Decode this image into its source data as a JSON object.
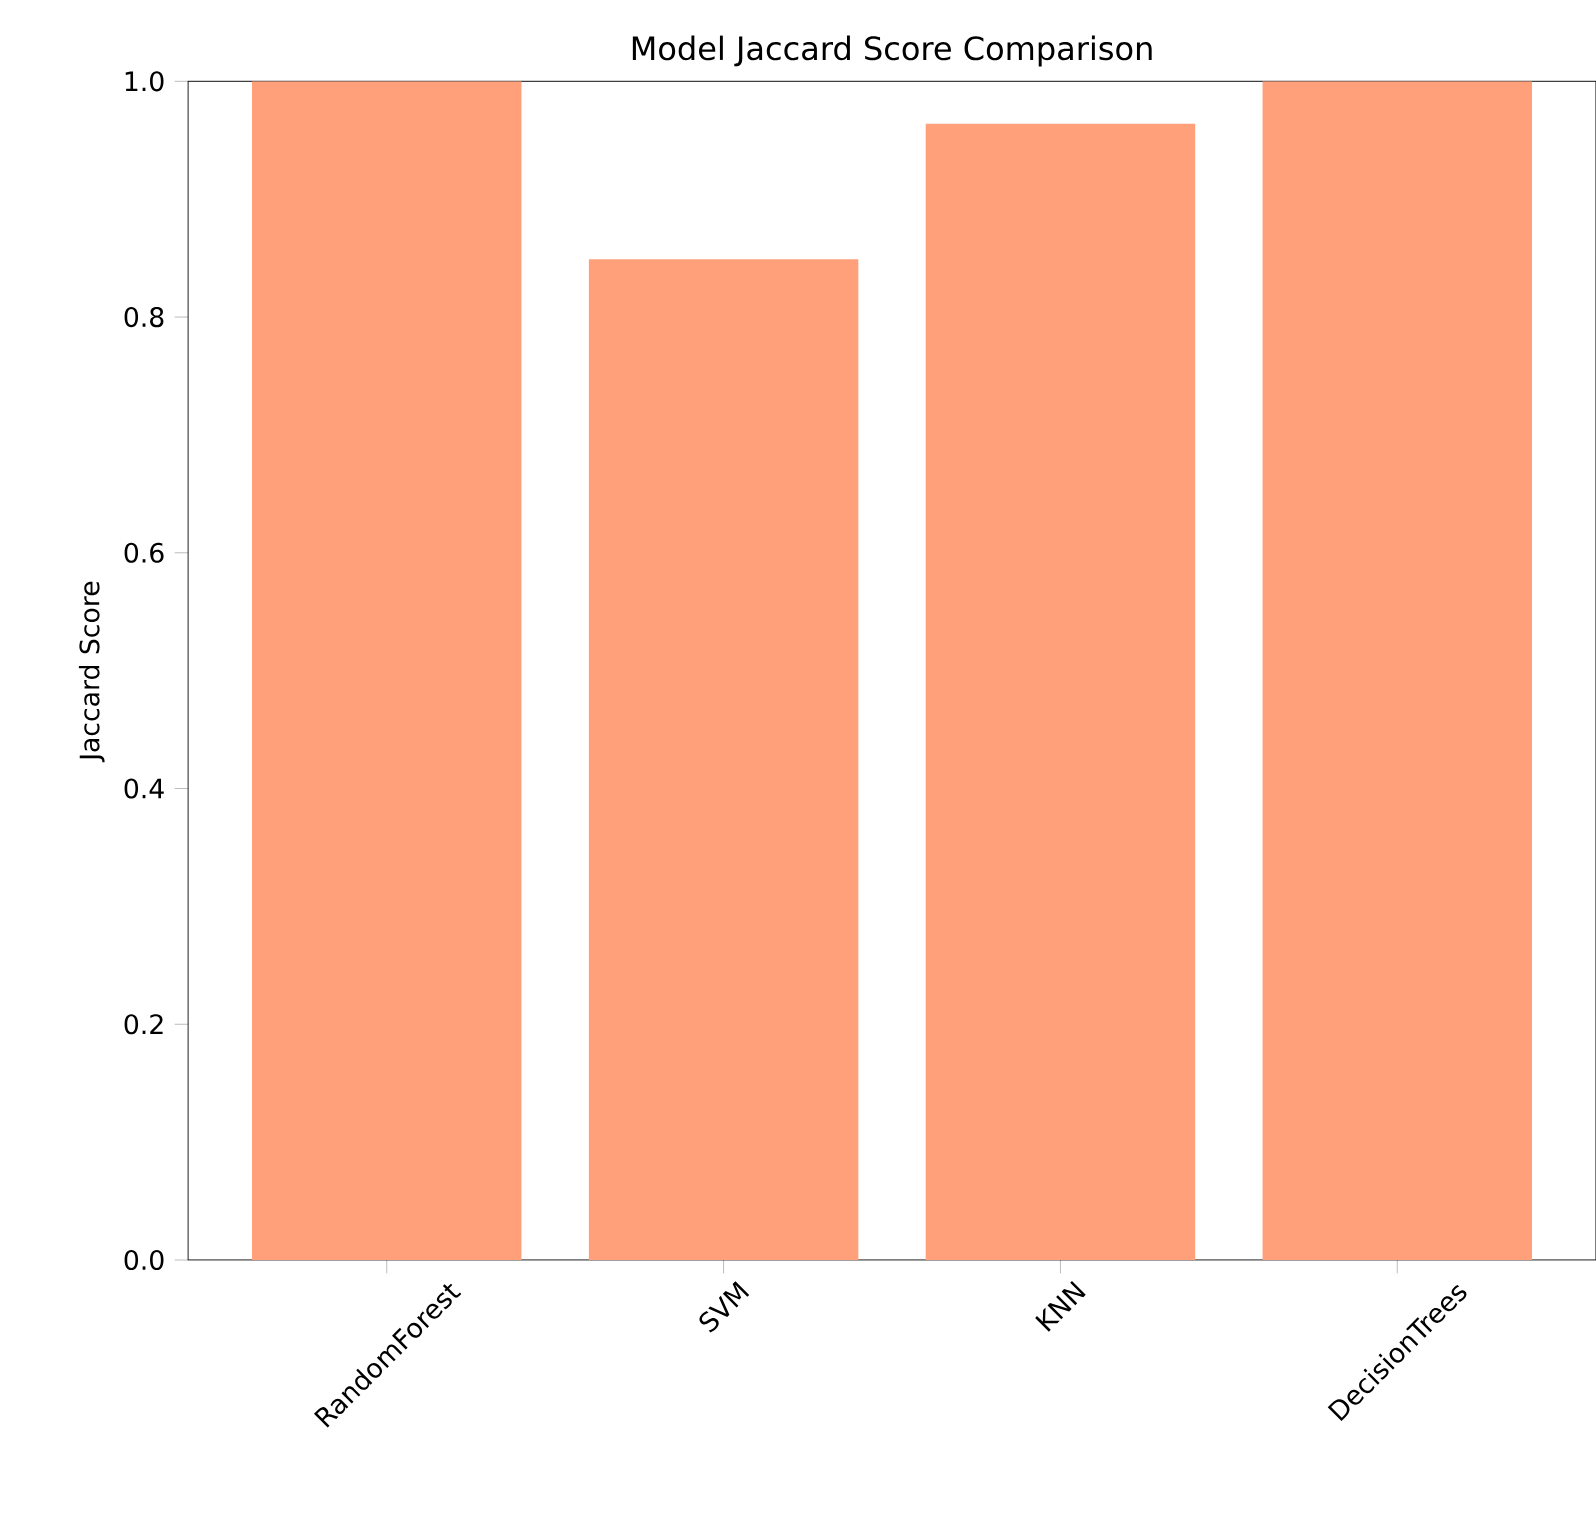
{
  "chart_data": {
    "type": "bar",
    "title": "Model Jaccard Score Comparison",
    "ylabel": "Jaccard Score",
    "categories": [
      "RandomForest",
      "SVM",
      "KNN",
      "DecisionTrees"
    ],
    "values": [
      1.0,
      0.849,
      0.964,
      1.0
    ],
    "color": "#ffa07a",
    "ylim": [
      0,
      1.0
    ],
    "yticks": [
      {
        "value": 0,
        "label": "0.0"
      },
      0.2,
      0.4,
      0.6,
      0.8,
      {
        "value": 1,
        "label": "1.0"
      }
    ],
    "grid": false
  }
}
